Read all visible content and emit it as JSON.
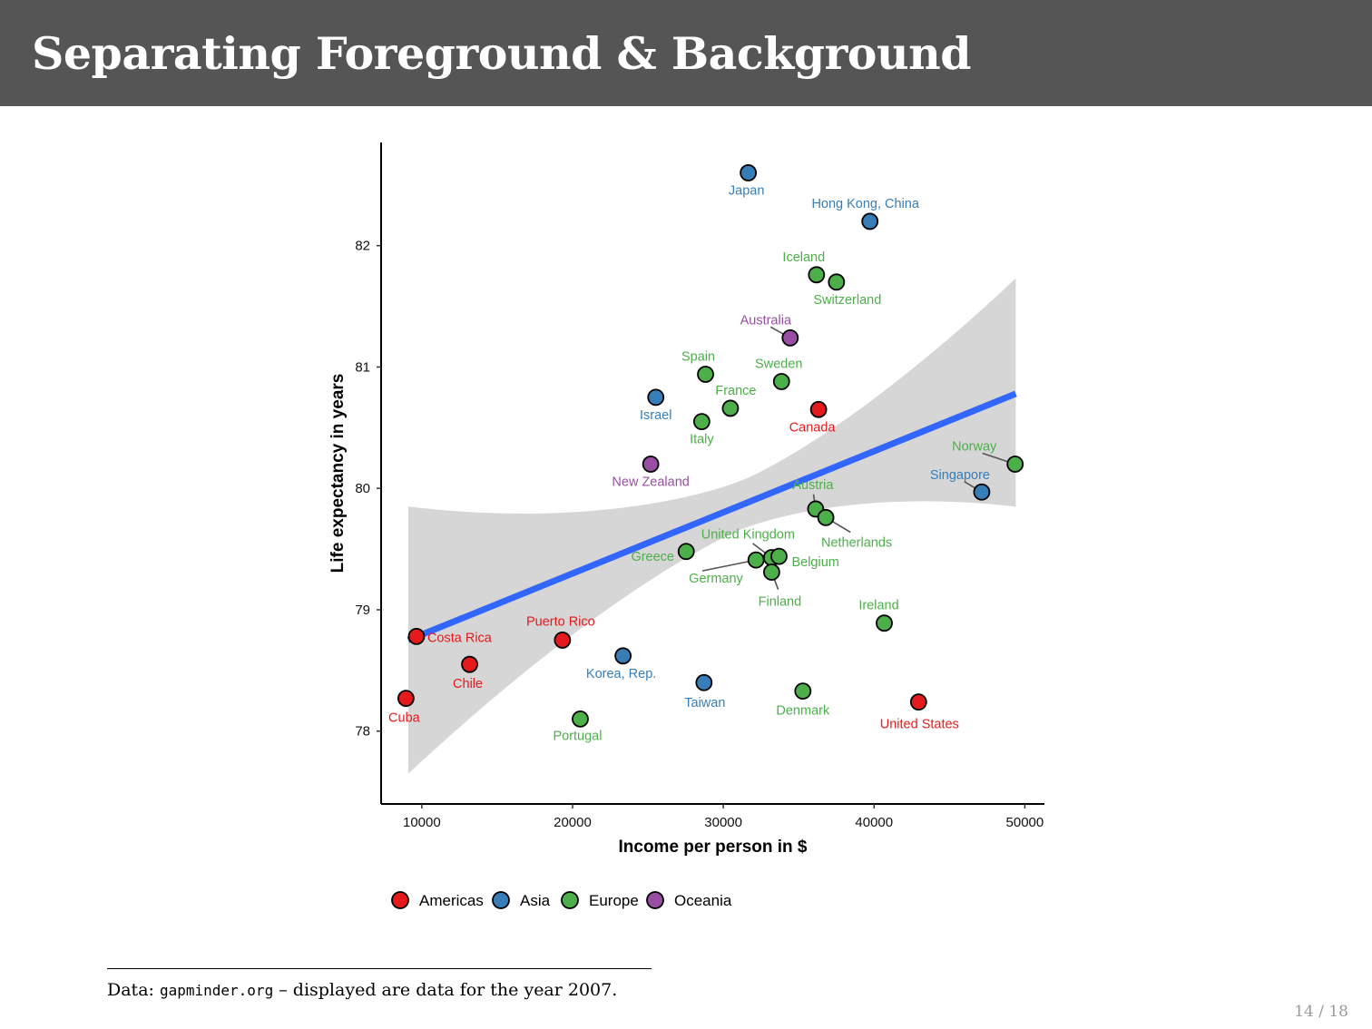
{
  "slide": {
    "title": "Separating Foreground & Background",
    "footnote_prefix": "Data: ",
    "footnote_code": "gapminder.org",
    "footnote_suffix": " – displayed are data for the year 2007.",
    "page": "14 / 18"
  },
  "colors": {
    "Americas": "#e41a1c",
    "Asia": "#377eb8",
    "Europe": "#4daf4a",
    "Oceania": "#984ea3",
    "trend": "#3366ff",
    "band": "#d6d6d6"
  },
  "chart_data": {
    "type": "scatter",
    "xlabel": "Income per person in $",
    "ylabel": "Life expectancy in years",
    "xlim": [
      7300,
      51300
    ],
    "ylim": [
      77.4,
      82.85
    ],
    "xticks": [
      10000,
      20000,
      30000,
      40000,
      50000
    ],
    "yticks": [
      78,
      79,
      80,
      81,
      82
    ],
    "grid": false,
    "legend_position": "bottom",
    "legend": [
      "Americas",
      "Asia",
      "Europe",
      "Oceania"
    ],
    "trend": {
      "method": "linear",
      "x": [
        9100,
        49400
      ],
      "y": [
        78.75,
        80.78
      ],
      "band_lower": [
        77.65,
        79.85
      ],
      "band_upper": [
        79.85,
        81.73
      ]
    },
    "points": [
      {
        "country": "Japan",
        "continent": "Asia",
        "x": 31656,
        "y": 82.6
      },
      {
        "country": "Hong Kong, China",
        "continent": "Asia",
        "x": 39725,
        "y": 82.2
      },
      {
        "country": "Iceland",
        "continent": "Europe",
        "x": 36181,
        "y": 81.76
      },
      {
        "country": "Switzerland",
        "continent": "Europe",
        "x": 37506,
        "y": 81.7
      },
      {
        "country": "Australia",
        "continent": "Oceania",
        "x": 34435,
        "y": 81.24
      },
      {
        "country": "Spain",
        "continent": "Europe",
        "x": 28821,
        "y": 80.94
      },
      {
        "country": "Sweden",
        "continent": "Europe",
        "x": 33860,
        "y": 80.88
      },
      {
        "country": "France",
        "continent": "Europe",
        "x": 30470,
        "y": 80.66
      },
      {
        "country": "Israel",
        "continent": "Asia",
        "x": 25523,
        "y": 80.75
      },
      {
        "country": "Canada",
        "continent": "Americas",
        "x": 36319,
        "y": 80.65
      },
      {
        "country": "Italy",
        "continent": "Europe",
        "x": 28570,
        "y": 80.55
      },
      {
        "country": "Norway",
        "continent": "Europe",
        "x": 49357,
        "y": 80.2
      },
      {
        "country": "New Zealand",
        "continent": "Oceania",
        "x": 25185,
        "y": 80.2
      },
      {
        "country": "Singapore",
        "continent": "Asia",
        "x": 47143,
        "y": 79.97
      },
      {
        "country": "Austria",
        "continent": "Europe",
        "x": 36126,
        "y": 79.83
      },
      {
        "country": "Netherlands",
        "continent": "Europe",
        "x": 36798,
        "y": 79.76
      },
      {
        "country": "United Kingdom",
        "continent": "Europe",
        "x": 33203,
        "y": 79.43
      },
      {
        "country": "Belgium",
        "continent": "Europe",
        "x": 33693,
        "y": 79.44
      },
      {
        "country": "Germany",
        "continent": "Europe",
        "x": 32170,
        "y": 79.41
      },
      {
        "country": "Greece",
        "continent": "Europe",
        "x": 27538,
        "y": 79.48
      },
      {
        "country": "Finland",
        "continent": "Europe",
        "x": 33207,
        "y": 79.31
      },
      {
        "country": "Ireland",
        "continent": "Europe",
        "x": 40676,
        "y": 78.89
      },
      {
        "country": "Puerto Rico",
        "continent": "Americas",
        "x": 19329,
        "y": 78.75
      },
      {
        "country": "Costa Rica",
        "continent": "Americas",
        "x": 9645,
        "y": 78.78
      },
      {
        "country": "Korea, Rep.",
        "continent": "Asia",
        "x": 23348,
        "y": 78.62
      },
      {
        "country": "Chile",
        "continent": "Americas",
        "x": 13172,
        "y": 78.55
      },
      {
        "country": "Taiwan",
        "continent": "Asia",
        "x": 28718,
        "y": 78.4
      },
      {
        "country": "Denmark",
        "continent": "Europe",
        "x": 35278,
        "y": 78.33
      },
      {
        "country": "Cuba",
        "continent": "Americas",
        "x": 8948,
        "y": 78.27
      },
      {
        "country": "United States",
        "continent": "Americas",
        "x": 42952,
        "y": 78.24
      },
      {
        "country": "Portugal",
        "continent": "Europe",
        "x": 20510,
        "y": 78.1
      }
    ]
  }
}
